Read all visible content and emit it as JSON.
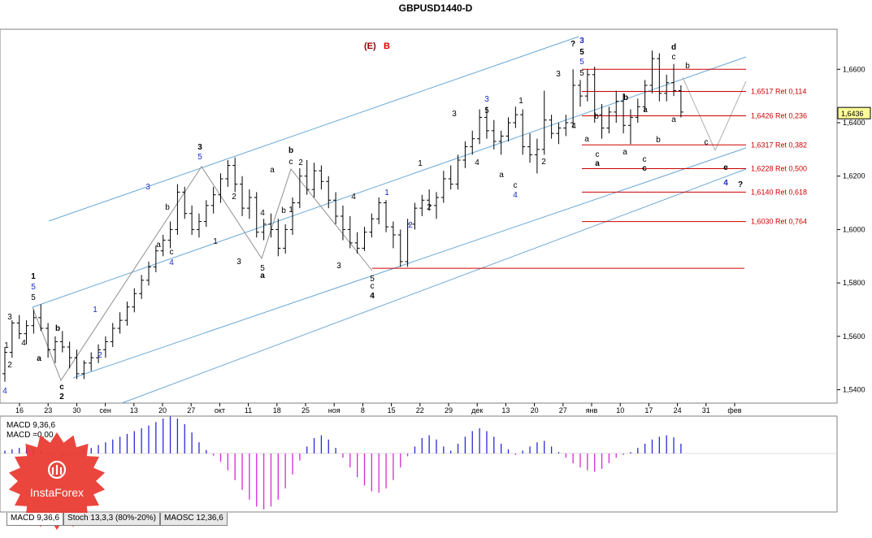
{
  "window": {
    "title": "GBPUSD1440-D"
  },
  "header": {
    "label_e": "(E)",
    "label_b": "B"
  },
  "chart_data": {
    "type": "candlestick",
    "title": "GBPUSD1440-D",
    "ylim": [
      1.535,
      1.675
    ],
    "y_ticks": [
      "1,5400",
      "1,5600",
      "1,5800",
      "1,6000",
      "1,6200",
      "1,6400",
      "1,6600"
    ],
    "x_ticks": [
      "16",
      "23",
      "30",
      "сен",
      "13",
      "20",
      "27",
      "окт",
      "11",
      "18",
      "25",
      "ноя",
      "8",
      "15",
      "22",
      "29",
      "дек",
      "13",
      "20",
      "27",
      "янв",
      "10",
      "17",
      "24",
      "31",
      "фев"
    ],
    "current_price": "1,6436",
    "retracements": [
      {
        "level": 1.6517,
        "label": "1,6517 Ret 0,114"
      },
      {
        "level": 1.6426,
        "label": "1,6426 Ret 0,236"
      },
      {
        "level": 1.6317,
        "label": "1,6317 Ret 0,382"
      },
      {
        "level": 1.6228,
        "label": "1,6228 Ret 0,500"
      },
      {
        "level": 1.614,
        "label": "1,6140 Ret 0,618"
      },
      {
        "level": 1.603,
        "label": "1,6030 Ret 0,764"
      }
    ],
    "levels": [
      1.66,
      1.5855
    ],
    "bars": [
      [
        1.546,
        1.556,
        1.543,
        1.554
      ],
      [
        1.554,
        1.566,
        1.552,
        1.565
      ],
      [
        1.565,
        1.568,
        1.559,
        1.561
      ],
      [
        1.561,
        1.566,
        1.557,
        1.564
      ],
      [
        1.564,
        1.57,
        1.561,
        1.567
      ],
      [
        1.567,
        1.572,
        1.562,
        1.563
      ],
      [
        1.563,
        1.565,
        1.552,
        1.555
      ],
      [
        1.555,
        1.56,
        1.55,
        1.558
      ],
      [
        1.558,
        1.562,
        1.554,
        1.556
      ],
      [
        1.556,
        1.558,
        1.548,
        1.552
      ],
      [
        1.552,
        1.555,
        1.544,
        1.546
      ],
      [
        1.546,
        1.551,
        1.544,
        1.55
      ],
      [
        1.55,
        1.554,
        1.547,
        1.552
      ],
      [
        1.552,
        1.557,
        1.55,
        1.555
      ],
      [
        1.555,
        1.56,
        1.552,
        1.558
      ],
      [
        1.558,
        1.565,
        1.556,
        1.563
      ],
      [
        1.563,
        1.569,
        1.561,
        1.566
      ],
      [
        1.566,
        1.573,
        1.564,
        1.571
      ],
      [
        1.571,
        1.578,
        1.569,
        1.576
      ],
      [
        1.576,
        1.583,
        1.574,
        1.581
      ],
      [
        1.581,
        1.588,
        1.579,
        1.586
      ],
      [
        1.586,
        1.594,
        1.584,
        1.592
      ],
      [
        1.592,
        1.598,
        1.59,
        1.596
      ],
      [
        1.596,
        1.603,
        1.593,
        1.6
      ],
      [
        1.6,
        1.617,
        1.598,
        1.614
      ],
      [
        1.614,
        1.616,
        1.604,
        1.606
      ],
      [
        1.606,
        1.609,
        1.598,
        1.6
      ],
      [
        1.6,
        1.606,
        1.597,
        1.603
      ],
      [
        1.603,
        1.611,
        1.601,
        1.609
      ],
      [
        1.609,
        1.616,
        1.606,
        1.613
      ],
      [
        1.613,
        1.621,
        1.61,
        1.619
      ],
      [
        1.619,
        1.626,
        1.616,
        1.624
      ],
      [
        1.624,
        1.627,
        1.614,
        1.617
      ],
      [
        1.617,
        1.62,
        1.605,
        1.608
      ],
      [
        1.608,
        1.615,
        1.604,
        1.612
      ],
      [
        1.612,
        1.614,
        1.597,
        1.599
      ],
      [
        1.599,
        1.604,
        1.596,
        1.602
      ],
      [
        1.602,
        1.606,
        1.597,
        1.6
      ],
      [
        1.6,
        1.604,
        1.59,
        1.593
      ],
      [
        1.593,
        1.602,
        1.591,
        1.6
      ],
      [
        1.6,
        1.612,
        1.598,
        1.61
      ],
      [
        1.61,
        1.623,
        1.608,
        1.62
      ],
      [
        1.62,
        1.626,
        1.613,
        1.615
      ],
      [
        1.615,
        1.625,
        1.612,
        1.622
      ],
      [
        1.622,
        1.624,
        1.615,
        1.618
      ],
      [
        1.618,
        1.62,
        1.608,
        1.611
      ],
      [
        1.611,
        1.614,
        1.602,
        1.605
      ],
      [
        1.605,
        1.609,
        1.596,
        1.6
      ],
      [
        1.6,
        1.605,
        1.593,
        1.595
      ],
      [
        1.595,
        1.599,
        1.591,
        1.593
      ],
      [
        1.593,
        1.601,
        1.592,
        1.599
      ],
      [
        1.599,
        1.606,
        1.597,
        1.604
      ],
      [
        1.604,
        1.612,
        1.602,
        1.61
      ],
      [
        1.61,
        1.611,
        1.599,
        1.601
      ],
      [
        1.601,
        1.603,
        1.593,
        1.598
      ],
      [
        1.598,
        1.6,
        1.586,
        1.588
      ],
      [
        1.588,
        1.604,
        1.586,
        1.602
      ],
      [
        1.602,
        1.61,
        1.6,
        1.608
      ],
      [
        1.608,
        1.613,
        1.605,
        1.611
      ],
      [
        1.611,
        1.615,
        1.607,
        1.609
      ],
      [
        1.609,
        1.614,
        1.604,
        1.612
      ],
      [
        1.612,
        1.622,
        1.61,
        1.619
      ],
      [
        1.619,
        1.624,
        1.615,
        1.617
      ],
      [
        1.617,
        1.628,
        1.615,
        1.626
      ],
      [
        1.626,
        1.633,
        1.623,
        1.631
      ],
      [
        1.631,
        1.637,
        1.628,
        1.634
      ],
      [
        1.634,
        1.645,
        1.632,
        1.642
      ],
      [
        1.642,
        1.646,
        1.634,
        1.637
      ],
      [
        1.637,
        1.641,
        1.63,
        1.633
      ],
      [
        1.633,
        1.637,
        1.628,
        1.635
      ],
      [
        1.635,
        1.642,
        1.633,
        1.64
      ],
      [
        1.64,
        1.646,
        1.638,
        1.643
      ],
      [
        1.643,
        1.645,
        1.628,
        1.631
      ],
      [
        1.631,
        1.636,
        1.625,
        1.628
      ],
      [
        1.628,
        1.634,
        1.621,
        1.63
      ],
      [
        1.63,
        1.652,
        1.628,
        1.641
      ],
      [
        1.641,
        1.643,
        1.634,
        1.636
      ],
      [
        1.636,
        1.64,
        1.632,
        1.638
      ],
      [
        1.638,
        1.643,
        1.635,
        1.64
      ],
      [
        1.64,
        1.66,
        1.638,
        1.654
      ],
      [
        1.654,
        1.656,
        1.646,
        1.65
      ],
      [
        1.65,
        1.66,
        1.648,
        1.658
      ],
      [
        1.658,
        1.661,
        1.64,
        1.643
      ],
      [
        1.643,
        1.647,
        1.634,
        1.638
      ],
      [
        1.638,
        1.646,
        1.636,
        1.644
      ],
      [
        1.644,
        1.652,
        1.64,
        1.648
      ],
      [
        1.648,
        1.651,
        1.636,
        1.639
      ],
      [
        1.639,
        1.645,
        1.632,
        1.642
      ],
      [
        1.642,
        1.649,
        1.64,
        1.646
      ],
      [
        1.646,
        1.656,
        1.644,
        1.654
      ],
      [
        1.654,
        1.667,
        1.651,
        1.664
      ],
      [
        1.664,
        1.666,
        1.648,
        1.651
      ],
      [
        1.651,
        1.658,
        1.648,
        1.655
      ],
      [
        1.655,
        1.662,
        1.65,
        1.652
      ],
      [
        1.652,
        1.654,
        1.642,
        1.644
      ]
    ]
  },
  "indicator": {
    "label1": "MACD 9,36,6",
    "label2": "MACD =0,00",
    "values": [
      0.4,
      0.6,
      0.8,
      0.9,
      0.6,
      0.3,
      0.1,
      -0.1,
      -0.3,
      -0.2,
      0.1,
      0.4,
      0.8,
      1.2,
      1.6,
      2.0,
      2.4,
      2.8,
      3.2,
      3.6,
      4.0,
      4.5,
      5.0,
      5.3,
      5.0,
      4.2,
      3.0,
      1.6,
      0.5,
      -0.3,
      -1.2,
      -2.4,
      -3.8,
      -5.2,
      -6.6,
      -7.6,
      -8.0,
      -7.6,
      -6.6,
      -5.0,
      -3.0,
      -1.0,
      1.0,
      2.2,
      2.6,
      2.0,
      0.8,
      -0.6,
      -2.0,
      -3.4,
      -4.6,
      -5.4,
      -5.6,
      -5.0,
      -3.8,
      -2.0,
      -0.4,
      1.0,
      2.2,
      2.6,
      2.0,
      1.0,
      0.4,
      1.4,
      2.4,
      3.2,
      3.6,
      3.2,
      2.4,
      1.4,
      0.6,
      -0.2,
      0.4,
      1.0,
      1.6,
      1.8,
      1.0,
      0.2,
      -0.6,
      -1.4,
      -2.0,
      -2.4,
      -2.6,
      -2.2,
      -1.4,
      -0.6,
      -0.2,
      0.2,
      0.8,
      1.4,
      2.0,
      2.4,
      2.6,
      2.3,
      1.4
    ]
  },
  "tabs": [
    "MACD 9,36,6",
    "Stoch 13,3,3 (80%-20%)",
    "MAOSC 12,36,6"
  ],
  "logo": {
    "text": "InstaForex"
  },
  "colors": {
    "channel": "#6aa8d6",
    "fibo": "#cc0000",
    "macd_pos": "#2a2ad6",
    "macd_neg": "#d62ad6",
    "wave_blue": "#1a2acc"
  }
}
